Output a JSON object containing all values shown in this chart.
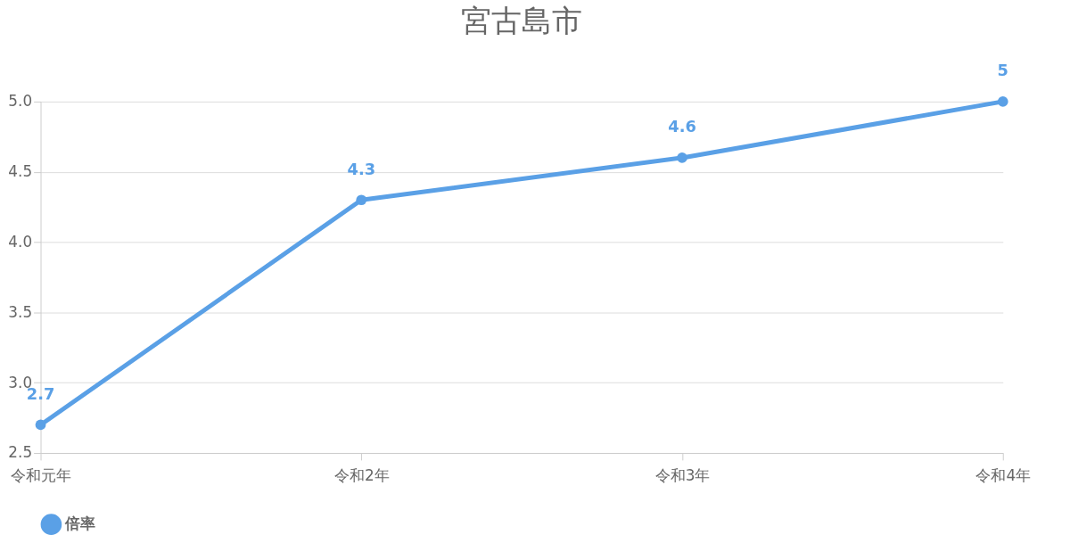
{
  "chart_data": {
    "type": "line",
    "title": "宮古島市",
    "categories": [
      "令和元年",
      "令和2年",
      "令和3年",
      "令和4年"
    ],
    "series": [
      {
        "name": "倍率",
        "color": "#5aa0e6",
        "values": [
          2.7,
          4.3,
          4.6,
          5
        ]
      }
    ],
    "ylim": [
      2.5,
      5.0
    ],
    "yticks": [
      {
        "value": 2.5,
        "label": "2.5"
      },
      {
        "value": 3.0,
        "label": "3.0"
      },
      {
        "value": 3.5,
        "label": "3.5"
      },
      {
        "value": 4.0,
        "label": "4.0"
      },
      {
        "value": 4.5,
        "label": "4.5"
      },
      {
        "value": 5.0,
        "label": "5.0"
      }
    ],
    "grid": "y",
    "legend": "bottom",
    "marker": "circle",
    "line_style": "solid",
    "data_labels": true
  }
}
